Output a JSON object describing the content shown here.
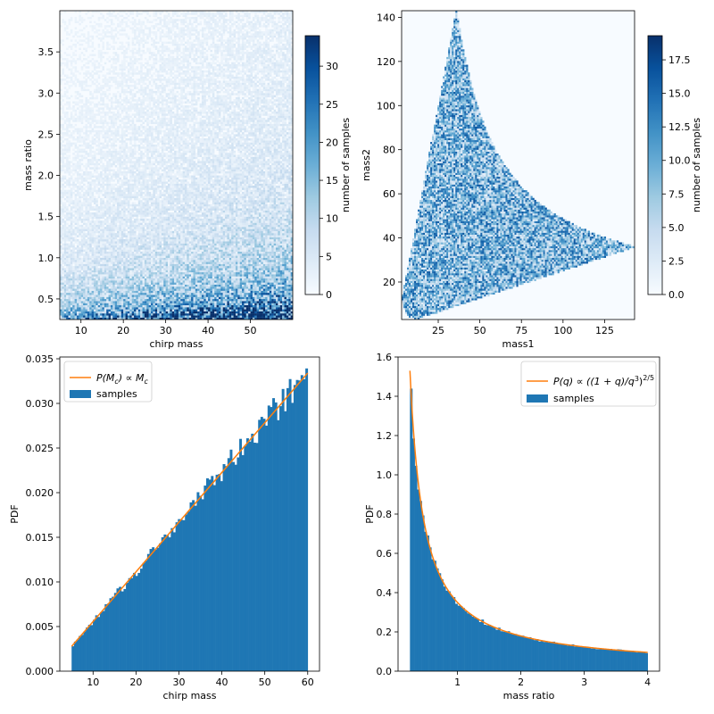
{
  "colors": {
    "bar": "#1f77b4",
    "line": "#ff7f0e",
    "cmap_low": "#f7fbff",
    "cmap_high": "#08306b"
  },
  "chart_data": [
    {
      "type": "heatmap",
      "xlabel": "chirp mass",
      "ylabel": "mass ratio",
      "xlim": [
        5,
        60
      ],
      "ylim": [
        0.25,
        4.0
      ],
      "xticks": [
        "10",
        "20",
        "30",
        "40",
        "50"
      ],
      "yticks": [
        "0.5",
        "1.0",
        "1.5",
        "2.0",
        "2.5",
        "3.0",
        "3.5"
      ],
      "colorbar": {
        "label": "number of samples",
        "range": [
          0,
          34
        ],
        "ticks": [
          "0",
          "5",
          "10",
          "15",
          "20",
          "25",
          "30"
        ]
      }
    },
    {
      "type": "heatmap",
      "xlabel": "mass1",
      "ylabel": "mass2",
      "xlim": [
        3,
        143
      ],
      "ylim": [
        3,
        143
      ],
      "xticks": [
        "25",
        "50",
        "75",
        "100",
        "125"
      ],
      "yticks": [
        "20",
        "40",
        "60",
        "80",
        "100",
        "120",
        "140"
      ],
      "colorbar": {
        "label": "number of samples",
        "range": [
          0,
          19.3
        ],
        "ticks": [
          "0.0",
          "2.5",
          "5.0",
          "7.5",
          "10.0",
          "12.5",
          "15.0",
          "17.5"
        ]
      }
    },
    {
      "type": "bar",
      "xlabel": "chirp mass",
      "ylabel": "PDF",
      "xlim": [
        2.25,
        62.75
      ],
      "ylim": [
        0,
        0.0352
      ],
      "xticks": [
        "10",
        "20",
        "30",
        "40",
        "50",
        "60"
      ],
      "yticks": [
        "0.000",
        "0.005",
        "0.010",
        "0.015",
        "0.020",
        "0.025",
        "0.030",
        "0.035"
      ],
      "bin_range": [
        5,
        60
      ],
      "bins": 100,
      "pdf_model": "P(Mc) proportional to Mc",
      "pdf_line": {
        "x": [
          5,
          60
        ],
        "y": [
          0.00277,
          0.0334
        ]
      },
      "legend": {
        "position": "upper left",
        "entries": [
          {
            "name_main": "P(M",
            "name_sub": "c",
            "name_rest": ") ∝ M",
            "name_sub2": "c",
            "kind": "line"
          },
          {
            "name": "samples",
            "kind": "bar"
          }
        ]
      }
    },
    {
      "type": "bar",
      "xlabel": "mass ratio",
      "ylabel": "PDF",
      "xlim": [
        0.0625,
        4.1875
      ],
      "ylim": [
        0,
        1.6
      ],
      "xticks": [
        "1",
        "2",
        "3",
        "4"
      ],
      "yticks": [
        "0.0",
        "0.2",
        "0.4",
        "0.6",
        "0.8",
        "1.0",
        "1.2",
        "1.4",
        "1.6"
      ],
      "bin_range": [
        0.25,
        4.0
      ],
      "bins": 100,
      "pdf_model": "P(q) proportional to ((1+q)/q^3)^(2/5)",
      "pdf_line": {
        "x_range": [
          0.25,
          4.0
        ],
        "y_at_min": 1.53,
        "y_at_max": 0.093
      },
      "legend": {
        "position": "upper right",
        "entries": [
          {
            "name_main": "P(q) ∝ ((1 + q)/q",
            "name_sup": "3",
            "name_rest": ")",
            "name_sup2": "2/5",
            "kind": "line"
          },
          {
            "name": "samples",
            "kind": "bar"
          }
        ]
      }
    }
  ]
}
